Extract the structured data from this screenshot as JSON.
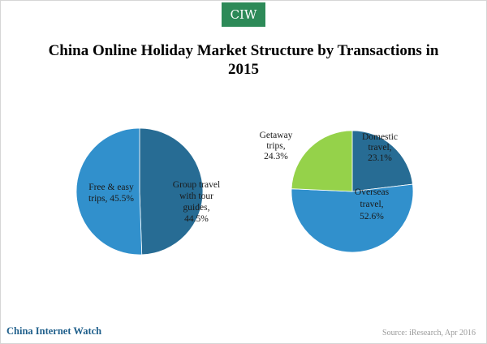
{
  "brand": {
    "badge": "CIW",
    "name": "China Internet Watch"
  },
  "source": "Source: iResearch, Apr 2016",
  "chart_data": [
    {
      "type": "pie",
      "title": "China Online Holiday Market Structure by Transactions in 2015",
      "slices": [
        {
          "label_lines": [
            "Group travel",
            "with tour",
            "guides,",
            "44.5%"
          ],
          "value": 44.5,
          "color": "#276c94"
        },
        {
          "label_lines": [
            "Free & easy",
            "trips, 45.5%"
          ],
          "value": 45.5,
          "color": "#3190cc"
        }
      ]
    },
    {
      "type": "pie",
      "slices": [
        {
          "label_lines": [
            "Domestic",
            "travel,",
            "23.1%"
          ],
          "value": 23.1,
          "color": "#276c94"
        },
        {
          "label_lines": [
            "Overseas",
            "travel,",
            "52.6%"
          ],
          "value": 52.6,
          "color": "#3190cc"
        },
        {
          "label_lines": [
            "Getaway",
            "trips,",
            "24.3%"
          ],
          "value": 24.3,
          "color": "#95d24a"
        }
      ]
    }
  ]
}
